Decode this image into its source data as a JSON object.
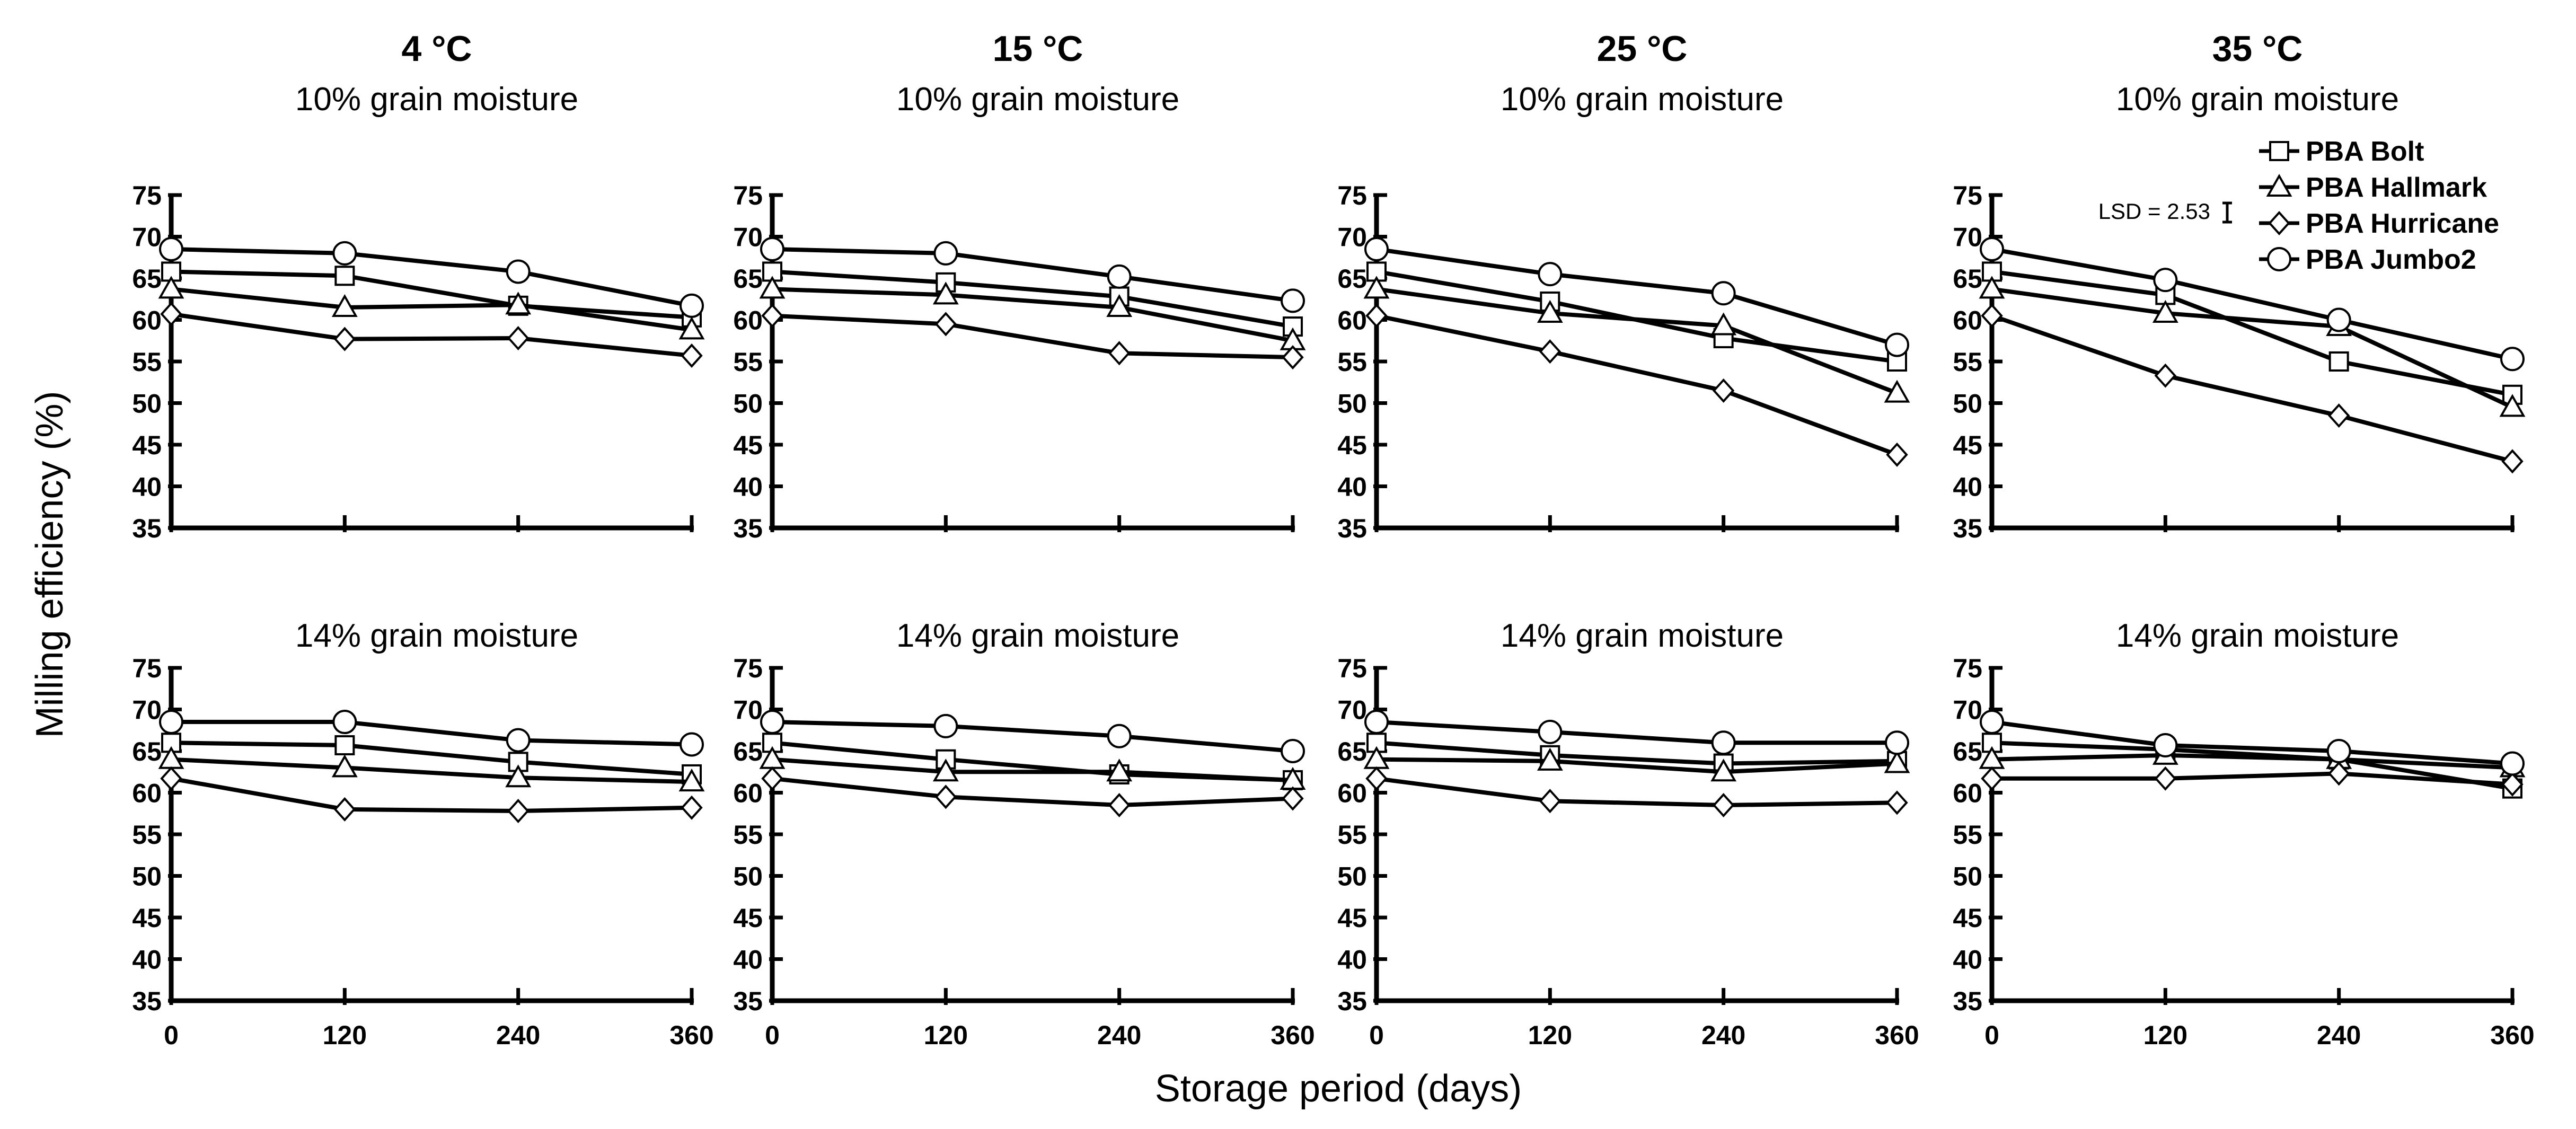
{
  "figure": {
    "ylabel": "Milling efficiency (%)",
    "xlabel": "Storage period (days)",
    "legend_entries": [
      "PBA Bolt",
      "PBA Hallmark",
      "PBA Hurricane",
      "PBA Jumbo2"
    ],
    "lsd_text": "LSD = 2.53",
    "legend_placement": "top-right",
    "colors": {
      "line": "#000000",
      "marker_fill": "#ffffff"
    }
  },
  "chart_data": {
    "type": "line",
    "x": [
      0,
      120,
      240,
      360
    ],
    "x_ticks": [
      "0",
      "120",
      "240",
      "360"
    ],
    "ylim": [
      35,
      75
    ],
    "y_ticks": [
      "35",
      "40",
      "45",
      "50",
      "55",
      "60",
      "65",
      "70",
      "75"
    ],
    "grid": false,
    "temperatures": [
      "4 °C",
      "15 °C",
      "25 °C",
      "35 °C"
    ],
    "moistures": [
      "10% grain moisture",
      "14% grain moisture"
    ],
    "series_names": [
      "PBA Bolt",
      "PBA Hallmark",
      "PBA Hurricane",
      "PBA Jumbo2"
    ],
    "series_markers": [
      "square",
      "triangle",
      "diamond",
      "circle"
    ],
    "panels": [
      {
        "temperature": "4 °C",
        "moisture": "10% grain moisture",
        "series": [
          {
            "name": "PBA Bolt",
            "values": [
              65.8,
              65.3,
              61.7,
              60.3
            ]
          },
          {
            "name": "PBA Hallmark",
            "values": [
              63.7,
              61.5,
              61.8,
              58.8
            ]
          },
          {
            "name": "PBA Hurricane",
            "values": [
              60.7,
              57.7,
              57.8,
              55.7
            ]
          },
          {
            "name": "PBA Jumbo2",
            "values": [
              68.5,
              68.0,
              65.8,
              61.7
            ]
          }
        ]
      },
      {
        "temperature": "15 °C",
        "moisture": "10% grain moisture",
        "series": [
          {
            "name": "PBA Bolt",
            "values": [
              65.8,
              64.5,
              62.8,
              59.2
            ]
          },
          {
            "name": "PBA Hallmark",
            "values": [
              63.7,
              63.0,
              61.5,
              57.5
            ]
          },
          {
            "name": "PBA Hurricane",
            "values": [
              60.5,
              59.5,
              56.0,
              55.5
            ]
          },
          {
            "name": "PBA Jumbo2",
            "values": [
              68.5,
              68.0,
              65.2,
              62.3
            ]
          }
        ]
      },
      {
        "temperature": "25 °C",
        "moisture": "10% grain moisture",
        "series": [
          {
            "name": "PBA Bolt",
            "values": [
              65.8,
              62.2,
              57.8,
              55.0
            ]
          },
          {
            "name": "PBA Hallmark",
            "values": [
              63.7,
              60.8,
              59.3,
              51.2
            ]
          },
          {
            "name": "PBA Hurricane",
            "values": [
              60.5,
              56.2,
              51.5,
              43.8
            ]
          },
          {
            "name": "PBA Jumbo2",
            "values": [
              68.5,
              65.5,
              63.2,
              57.0
            ]
          }
        ]
      },
      {
        "temperature": "35 °C",
        "moisture": "10% grain moisture",
        "series": [
          {
            "name": "PBA Bolt",
            "values": [
              65.8,
              63.0,
              55.0,
              51.0
            ]
          },
          {
            "name": "PBA Hallmark",
            "values": [
              63.7,
              60.8,
              59.2,
              49.5
            ]
          },
          {
            "name": "PBA Hurricane",
            "values": [
              60.5,
              53.3,
              48.5,
              43.0
            ]
          },
          {
            "name": "PBA Jumbo2",
            "values": [
              68.5,
              64.8,
              60.0,
              55.3
            ]
          }
        ]
      },
      {
        "temperature": "4 °C",
        "moisture": "14% grain moisture",
        "series": [
          {
            "name": "PBA Bolt",
            "values": [
              66.0,
              65.7,
              63.7,
              62.2
            ]
          },
          {
            "name": "PBA Hallmark",
            "values": [
              64.0,
              63.0,
              61.8,
              61.3
            ]
          },
          {
            "name": "PBA Hurricane",
            "values": [
              61.7,
              58.0,
              57.8,
              58.2
            ]
          },
          {
            "name": "PBA Jumbo2",
            "values": [
              68.5,
              68.5,
              66.3,
              65.8
            ]
          }
        ]
      },
      {
        "temperature": "15 °C",
        "moisture": "14% grain moisture",
        "series": [
          {
            "name": "PBA Bolt",
            "values": [
              66.0,
              64.0,
              62.2,
              61.5
            ]
          },
          {
            "name": "PBA Hallmark",
            "values": [
              64.0,
              62.5,
              62.5,
              61.5
            ]
          },
          {
            "name": "PBA Hurricane",
            "values": [
              61.7,
              59.5,
              58.5,
              59.3
            ]
          },
          {
            "name": "PBA Jumbo2",
            "values": [
              68.5,
              68.0,
              66.8,
              65.0
            ]
          }
        ]
      },
      {
        "temperature": "25 °C",
        "moisture": "14% grain moisture",
        "series": [
          {
            "name": "PBA Bolt",
            "values": [
              66.0,
              64.5,
              63.5,
              63.8
            ]
          },
          {
            "name": "PBA Hallmark",
            "values": [
              64.0,
              63.8,
              62.5,
              63.5
            ]
          },
          {
            "name": "PBA Hurricane",
            "values": [
              61.7,
              59.0,
              58.5,
              58.8
            ]
          },
          {
            "name": "PBA Jumbo2",
            "values": [
              68.5,
              67.3,
              66.0,
              66.0
            ]
          }
        ]
      },
      {
        "temperature": "35 °C",
        "moisture": "14% grain moisture",
        "series": [
          {
            "name": "PBA Bolt",
            "values": [
              66.0,
              65.2,
              64.0,
              60.5
            ]
          },
          {
            "name": "PBA Hallmark",
            "values": [
              64.0,
              64.5,
              64.0,
              63.0
            ]
          },
          {
            "name": "PBA Hurricane",
            "values": [
              61.7,
              61.7,
              62.3,
              61.0
            ]
          },
          {
            "name": "PBA Jumbo2",
            "values": [
              68.5,
              65.7,
              65.0,
              63.5
            ]
          }
        ]
      }
    ]
  }
}
